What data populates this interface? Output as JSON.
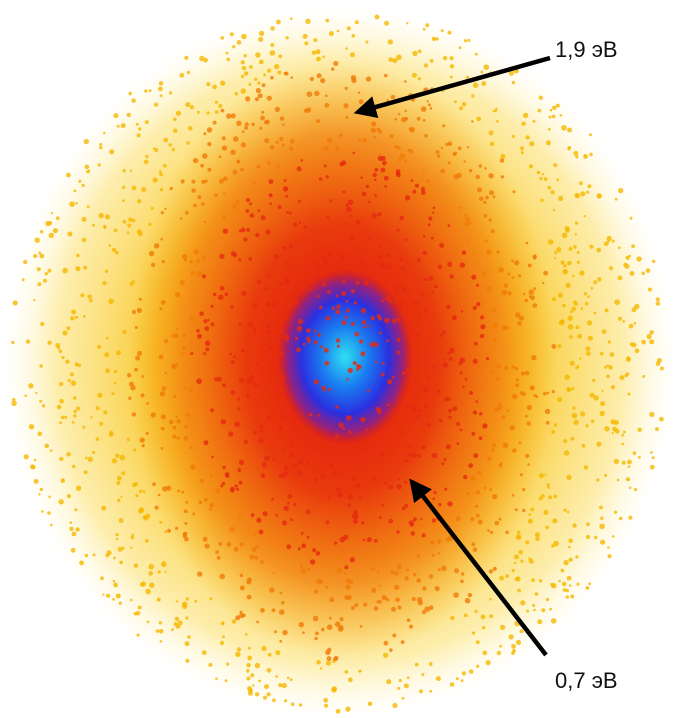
{
  "annotations": [
    {
      "label": "1,9 эВ"
    },
    {
      "label": "0,7 эВ"
    }
  ]
}
